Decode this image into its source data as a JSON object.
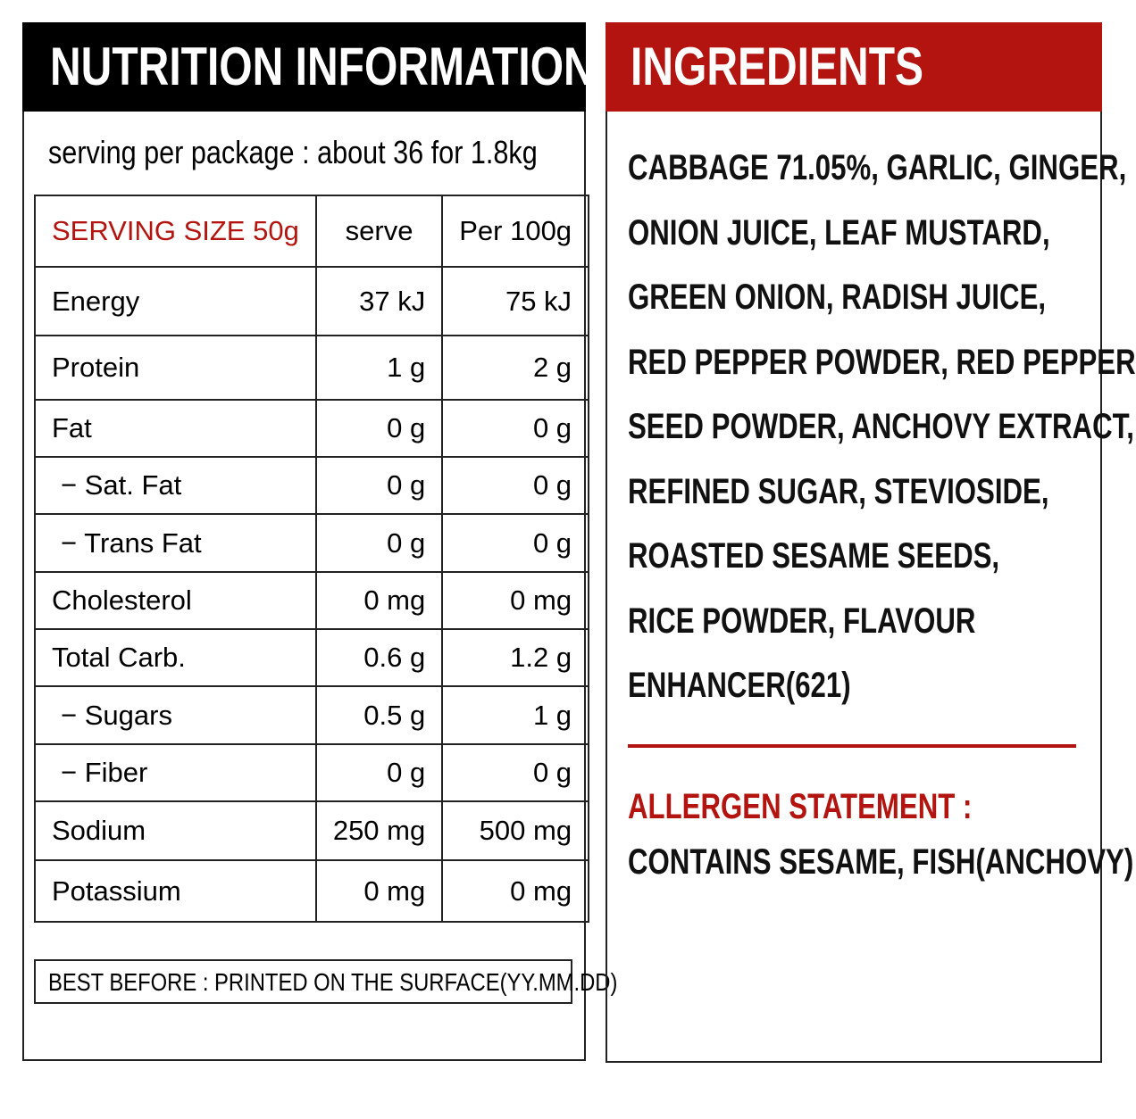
{
  "nutrition": {
    "title": "NUTRITION INFORMATION",
    "serving": "serving per package : about 36 for 1.8kg",
    "table": {
      "header": [
        "SERVING SIZE 50g",
        "serve",
        "Per 100g"
      ],
      "rows": [
        [
          "Energy",
          "37 kJ",
          "75 kJ"
        ],
        [
          "Protein",
          "1 g",
          "2 g"
        ],
        [
          "Fat",
          "0 g",
          "0 g"
        ],
        [
          "− Sat. Fat",
          "0 g",
          "0 g"
        ],
        [
          "− Trans Fat",
          "0 g",
          "0 g"
        ],
        [
          "Cholesterol",
          "0 mg",
          "0 mg"
        ],
        [
          "Total Carb.",
          "0.6 g",
          "1.2 g"
        ],
        [
          "− Sugars",
          "0.5 g",
          "1 g"
        ],
        [
          "− Fiber",
          "0 g",
          "0 g"
        ],
        [
          "Sodium",
          "250 mg",
          "500 mg"
        ],
        [
          "Potassium",
          "0 mg",
          "0 mg"
        ]
      ]
    },
    "best_before": "BEST BEFORE : PRINTED ON THE SURFACE(YY.MM.DD)"
  },
  "ingredients": {
    "title": "INGREDIENTS",
    "lines": [
      "CABBAGE 71.05%, GARLIC, GINGER,",
      "ONION JUICE, LEAF MUSTARD,",
      "GREEN ONION, RADISH JUICE,",
      "RED PEPPER POWDER, RED PEPPER",
      "SEED POWDER, ANCHOVY EXTRACT,",
      "REFINED SUGAR, STEVIOSIDE,",
      "ROASTED SESAME SEEDS,",
      "RICE POWDER, FLAVOUR",
      "ENHANCER(621)"
    ],
    "allergen_title": "ALLERGEN STATEMENT :",
    "allergen_text": "CONTAINS SESAME, FISH(ANCHOVY)"
  }
}
